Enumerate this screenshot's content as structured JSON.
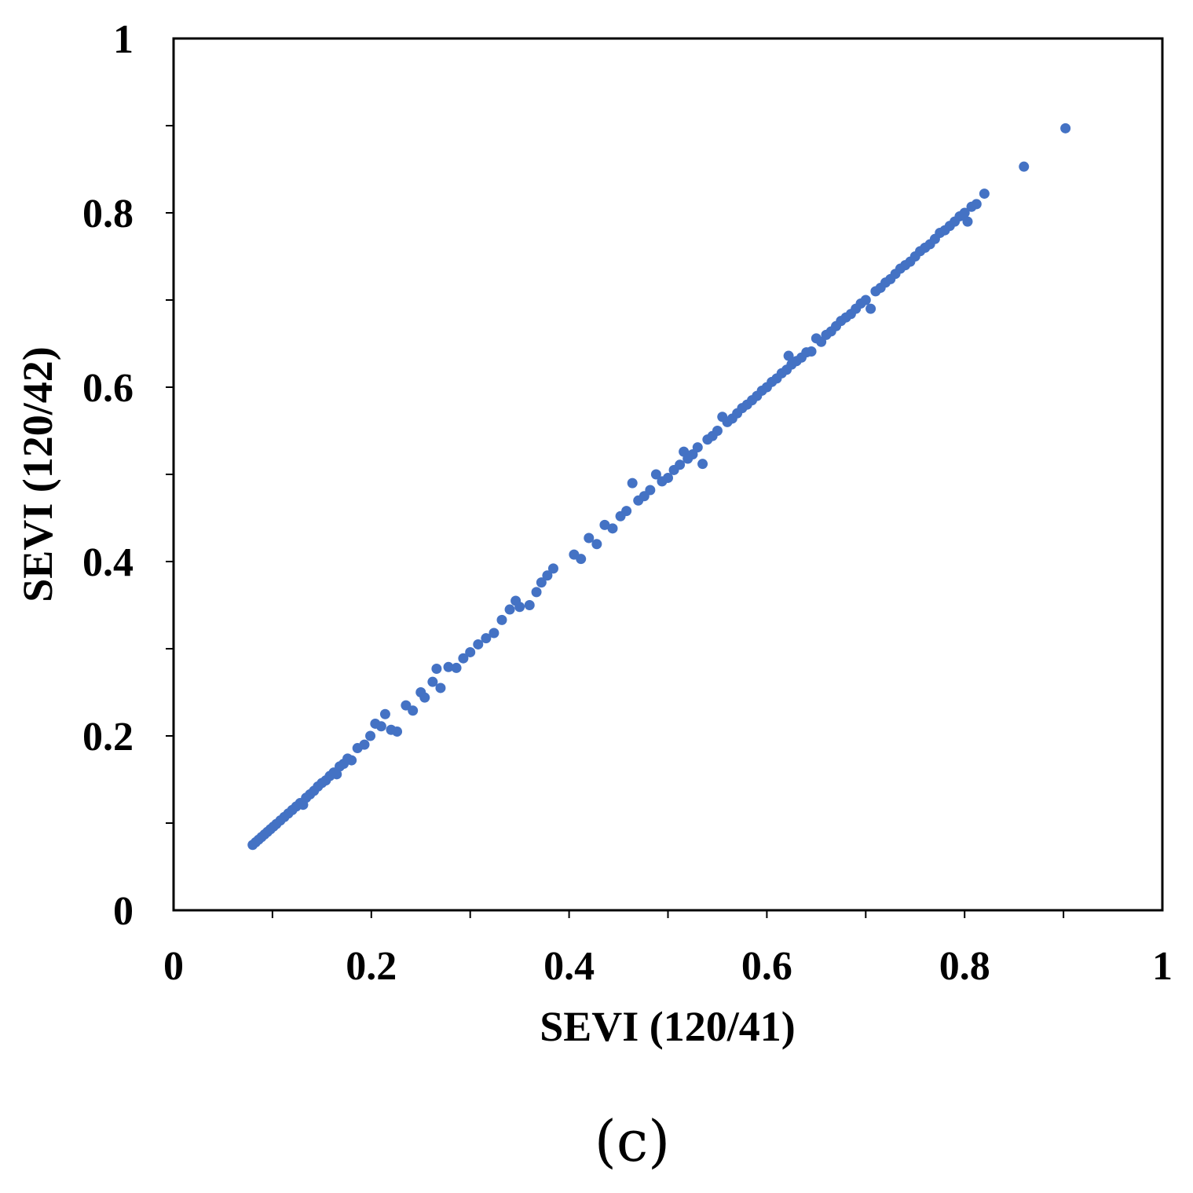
{
  "chart_data": {
    "type": "scatter",
    "title": "",
    "xlabel": "SEVI (120/41)",
    "ylabel": "SEVI (120/42)",
    "xlim": [
      0,
      1
    ],
    "ylim": [
      0,
      1
    ],
    "x_major_ticks": [
      0,
      0.2,
      0.4,
      0.6,
      0.8,
      1
    ],
    "x_minor_ticks": [
      0.1,
      0.3,
      0.5,
      0.7,
      0.9
    ],
    "y_major_ticks": [
      0,
      0.2,
      0.4,
      0.6,
      0.8,
      1
    ],
    "y_minor_ticks": [
      0.1,
      0.3,
      0.5,
      0.7,
      0.9
    ],
    "x_tick_labels": [
      "0",
      "0.2",
      "0.4",
      "0.6",
      "0.8",
      "1"
    ],
    "y_tick_labels": [
      "0",
      "0.2",
      "0.4",
      "0.6",
      "0.8",
      "1"
    ],
    "grid": false,
    "legend": "none",
    "marker_color": "#4472C4",
    "panel_label": "(c)",
    "series": [
      {
        "points": [
          [
            0.08,
            0.075
          ],
          [
            0.083,
            0.078
          ],
          [
            0.086,
            0.081
          ],
          [
            0.089,
            0.084
          ],
          [
            0.092,
            0.087
          ],
          [
            0.095,
            0.09
          ],
          [
            0.098,
            0.093
          ],
          [
            0.101,
            0.096
          ],
          [
            0.104,
            0.099
          ],
          [
            0.108,
            0.103
          ],
          [
            0.112,
            0.107
          ],
          [
            0.116,
            0.111
          ],
          [
            0.12,
            0.115
          ],
          [
            0.124,
            0.119
          ],
          [
            0.128,
            0.123
          ],
          [
            0.131,
            0.121
          ],
          [
            0.134,
            0.129
          ],
          [
            0.138,
            0.133
          ],
          [
            0.142,
            0.137
          ],
          [
            0.146,
            0.142
          ],
          [
            0.15,
            0.146
          ],
          [
            0.154,
            0.149
          ],
          [
            0.158,
            0.154
          ],
          [
            0.162,
            0.158
          ],
          [
            0.165,
            0.156
          ],
          [
            0.168,
            0.165
          ],
          [
            0.172,
            0.168
          ],
          [
            0.176,
            0.174
          ],
          [
            0.18,
            0.172
          ],
          [
            0.186,
            0.186
          ],
          [
            0.193,
            0.19
          ],
          [
            0.199,
            0.2
          ],
          [
            0.204,
            0.214
          ],
          [
            0.21,
            0.211
          ],
          [
            0.214,
            0.225
          ],
          [
            0.22,
            0.207
          ],
          [
            0.226,
            0.205
          ],
          [
            0.235,
            0.235
          ],
          [
            0.242,
            0.229
          ],
          [
            0.25,
            0.25
          ],
          [
            0.254,
            0.244
          ],
          [
            0.262,
            0.262
          ],
          [
            0.266,
            0.277
          ],
          [
            0.27,
            0.255
          ],
          [
            0.278,
            0.279
          ],
          [
            0.286,
            0.278
          ],
          [
            0.293,
            0.289
          ],
          [
            0.3,
            0.296
          ],
          [
            0.308,
            0.305
          ],
          [
            0.316,
            0.312
          ],
          [
            0.324,
            0.318
          ],
          [
            0.332,
            0.333
          ],
          [
            0.34,
            0.345
          ],
          [
            0.346,
            0.355
          ],
          [
            0.35,
            0.348
          ],
          [
            0.36,
            0.35
          ],
          [
            0.367,
            0.365
          ],
          [
            0.372,
            0.376
          ],
          [
            0.378,
            0.384
          ],
          [
            0.384,
            0.392
          ],
          [
            0.405,
            0.408
          ],
          [
            0.412,
            0.403
          ],
          [
            0.42,
            0.427
          ],
          [
            0.428,
            0.42
          ],
          [
            0.436,
            0.442
          ],
          [
            0.444,
            0.438
          ],
          [
            0.452,
            0.452
          ],
          [
            0.458,
            0.458
          ],
          [
            0.464,
            0.49
          ],
          [
            0.47,
            0.47
          ],
          [
            0.476,
            0.475
          ],
          [
            0.482,
            0.482
          ],
          [
            0.488,
            0.5
          ],
          [
            0.494,
            0.492
          ],
          [
            0.5,
            0.496
          ],
          [
            0.506,
            0.505
          ],
          [
            0.512,
            0.511
          ],
          [
            0.516,
            0.526
          ],
          [
            0.52,
            0.518
          ],
          [
            0.525,
            0.523
          ],
          [
            0.53,
            0.531
          ],
          [
            0.535,
            0.512
          ],
          [
            0.54,
            0.54
          ],
          [
            0.545,
            0.544
          ],
          [
            0.55,
            0.55
          ],
          [
            0.555,
            0.566
          ],
          [
            0.56,
            0.56
          ],
          [
            0.565,
            0.564
          ],
          [
            0.57,
            0.57
          ],
          [
            0.575,
            0.576
          ],
          [
            0.58,
            0.58
          ],
          [
            0.585,
            0.585
          ],
          [
            0.59,
            0.59
          ],
          [
            0.595,
            0.596
          ],
          [
            0.6,
            0.6
          ],
          [
            0.605,
            0.606
          ],
          [
            0.61,
            0.61
          ],
          [
            0.615,
            0.616
          ],
          [
            0.62,
            0.62
          ],
          [
            0.622,
            0.636
          ],
          [
            0.625,
            0.626
          ],
          [
            0.63,
            0.63
          ],
          [
            0.635,
            0.634
          ],
          [
            0.64,
            0.64
          ],
          [
            0.645,
            0.641
          ],
          [
            0.65,
            0.656
          ],
          [
            0.655,
            0.652
          ],
          [
            0.66,
            0.66
          ],
          [
            0.665,
            0.664
          ],
          [
            0.67,
            0.67
          ],
          [
            0.675,
            0.676
          ],
          [
            0.68,
            0.68
          ],
          [
            0.685,
            0.684
          ],
          [
            0.69,
            0.69
          ],
          [
            0.695,
            0.696
          ],
          [
            0.7,
            0.7
          ],
          [
            0.705,
            0.69
          ],
          [
            0.71,
            0.71
          ],
          [
            0.715,
            0.714
          ],
          [
            0.72,
            0.72
          ],
          [
            0.725,
            0.724
          ],
          [
            0.73,
            0.73
          ],
          [
            0.735,
            0.736
          ],
          [
            0.74,
            0.74
          ],
          [
            0.745,
            0.744
          ],
          [
            0.75,
            0.75
          ],
          [
            0.755,
            0.756
          ],
          [
            0.76,
            0.76
          ],
          [
            0.765,
            0.764
          ],
          [
            0.77,
            0.77
          ],
          [
            0.775,
            0.777
          ],
          [
            0.78,
            0.78
          ],
          [
            0.785,
            0.785
          ],
          [
            0.79,
            0.79
          ],
          [
            0.795,
            0.796
          ],
          [
            0.8,
            0.8
          ],
          [
            0.803,
            0.79
          ],
          [
            0.807,
            0.807
          ],
          [
            0.812,
            0.81
          ],
          [
            0.82,
            0.822
          ],
          [
            0.86,
            0.853
          ],
          [
            0.902,
            0.897
          ]
        ]
      }
    ]
  }
}
